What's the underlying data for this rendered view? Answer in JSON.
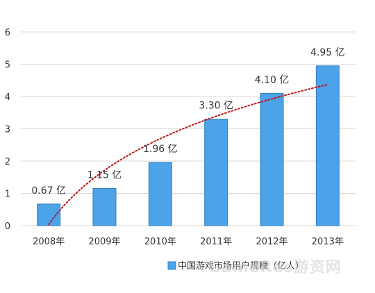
{
  "chart_data": {
    "type": "bar",
    "categories": [
      "2008年",
      "2009年",
      "2010年",
      "2011年",
      "2012年",
      "2013年"
    ],
    "values": [
      0.67,
      1.15,
      1.96,
      3.3,
      4.1,
      4.95
    ],
    "data_labels": [
      "0.67 亿",
      "1.15 亿",
      "1.96 亿",
      "3.30 亿",
      "4.10 亿",
      "4.95 亿"
    ],
    "y_ticks": [
      0,
      1,
      2,
      3,
      4,
      5,
      6
    ],
    "ylim": [
      0,
      6
    ],
    "series": [
      {
        "name": "中国游戏市场用户规模（亿人）",
        "values": [
          0.67,
          1.15,
          1.96,
          3.3,
          4.1,
          4.95
        ]
      }
    ],
    "trendline": {
      "style": "dotted",
      "shape": "logarithmic"
    },
    "legend_position": "bottom",
    "grid": true,
    "colors": {
      "bar": "#4da3e8",
      "bar_edge": "#2f7fc4",
      "trendline": "#c0161a",
      "grid": "#d9d9d9"
    }
  },
  "watermark": "GameRes游资网"
}
